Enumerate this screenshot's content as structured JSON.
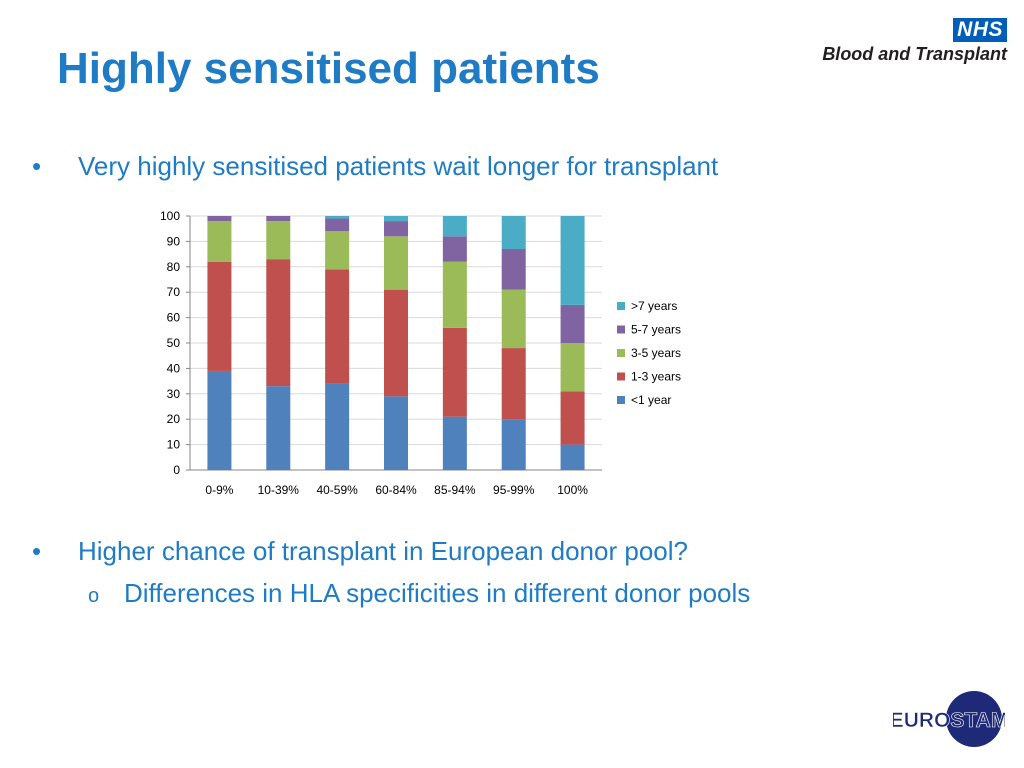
{
  "slide": {
    "title": "Highly sensitised patients",
    "bullets": [
      {
        "mark": "•",
        "text": "Very highly sensitised patients wait longer for transplant"
      },
      {
        "mark": "•",
        "text": "Higher chance of transplant in European donor pool?"
      }
    ],
    "sub_bullets": [
      {
        "mark": "o",
        "text": "Differences in HLA specificities in different donor pools"
      }
    ]
  },
  "logos": {
    "nhs_badge": "NHS",
    "nhs_org": "Blood and Transplant",
    "eurostam": "EUROSTAM"
  },
  "colors": {
    "title": "#1f7cc4",
    "nhs_blue": "#005eb8",
    "eurostam_navy": "#1e2a78"
  },
  "chart_data": {
    "type": "bar",
    "stacked": true,
    "categories": [
      "0-9%",
      "10-39%",
      "40-59%",
      "60-84%",
      "85-94%",
      "95-99%",
      "100%"
    ],
    "ylim": [
      0,
      100
    ],
    "yticks": [
      0,
      10,
      20,
      30,
      40,
      50,
      60,
      70,
      80,
      90,
      100
    ],
    "grid": true,
    "legend_position": "right",
    "series": [
      {
        "name": "<1 year",
        "color": "#4f81bd",
        "values": [
          39,
          33,
          34,
          29,
          21,
          20,
          10
        ]
      },
      {
        "name": "1-3 years",
        "color": "#c0504d",
        "values": [
          43,
          50,
          45,
          42,
          35,
          28,
          21
        ]
      },
      {
        "name": "3-5 years",
        "color": "#9bbb59",
        "values": [
          16,
          15,
          15,
          21,
          26,
          23,
          19
        ]
      },
      {
        "name": "5-7 years",
        "color": "#8064a2",
        "values": [
          2,
          2,
          5,
          6,
          10,
          16,
          15
        ]
      },
      {
        "name": ">7 years",
        "color": "#4bacc6",
        "values": [
          0,
          0,
          1,
          2,
          8,
          13,
          35
        ]
      }
    ]
  }
}
